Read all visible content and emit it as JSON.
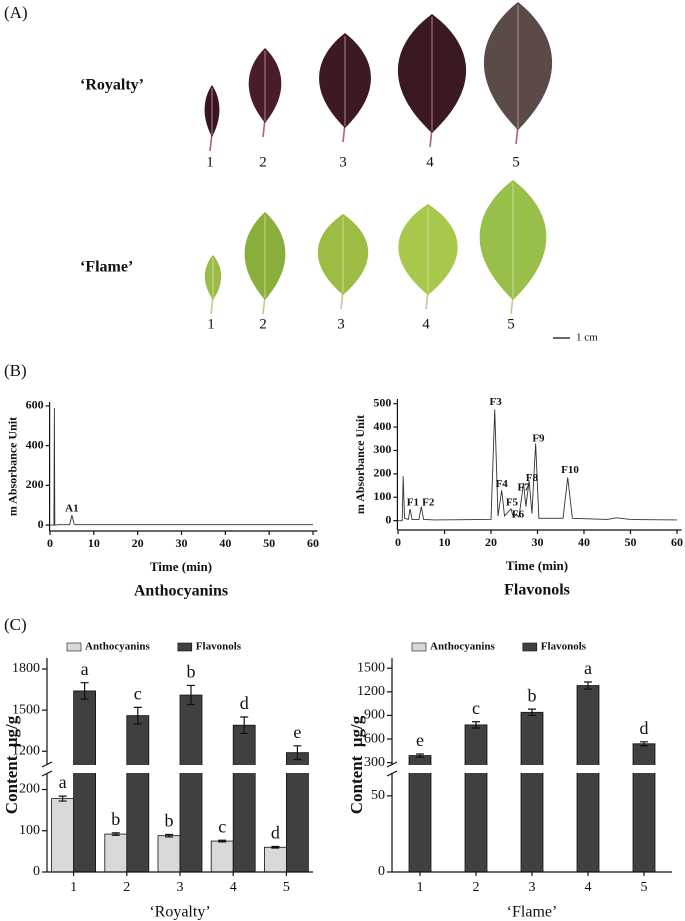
{
  "figure": {
    "panel_labels": [
      "(A)",
      "(B)",
      "(C)"
    ],
    "leaf_rows": [
      {
        "label": "‘Royalty’",
        "numbers": [
          "1",
          "2",
          "3",
          "4",
          "5"
        ]
      },
      {
        "label": "‘Flame’",
        "numbers": [
          "1",
          "2",
          "3",
          "4",
          "5"
        ]
      }
    ],
    "scale_bar": "1 cm"
  },
  "chart_data": [
    {
      "type": "line",
      "title": "Anthocyanins",
      "xlabel": "Time (min)",
      "ylabel": "m Absorbance Unit",
      "color": "#333333",
      "x": [
        0,
        0.9,
        1.0,
        1.1,
        1.3,
        2,
        4.5,
        5,
        5.5,
        6,
        10,
        60
      ],
      "values": [
        0,
        0,
        590,
        0,
        0,
        2,
        2,
        50,
        5,
        2,
        2,
        2
      ],
      "xlim": [
        -1,
        61
      ],
      "xticks": [
        0,
        10,
        20,
        30,
        40,
        50,
        60
      ],
      "ylim": [
        -30,
        620
      ],
      "yticks": [
        0,
        200,
        400,
        600
      ],
      "annotations": [
        {
          "text": "A1",
          "x": 5,
          "y": 80
        }
      ]
    },
    {
      "type": "line",
      "title": "Flavonols",
      "xlabel": "Time (min)",
      "ylabel": "m Absorbance Unit",
      "color": "#333333",
      "x": [
        0,
        0.9,
        1.1,
        1.4,
        2.2,
        2.6,
        3,
        4.5,
        5,
        5.5,
        8,
        20,
        20.8,
        21.5,
        22.3,
        22.9,
        24.3,
        24.8,
        25.5,
        26,
        27,
        27.5,
        28.2,
        28.8,
        29.6,
        30.3,
        35.5,
        36.5,
        37.5,
        45,
        47,
        50,
        60
      ],
      "values": [
        0,
        0,
        190,
        10,
        5,
        50,
        5,
        5,
        60,
        5,
        3,
        5,
        475,
        20,
        130,
        20,
        50,
        15,
        25,
        15,
        160,
        60,
        170,
        30,
        330,
        10,
        10,
        185,
        10,
        5,
        12,
        5,
        3
      ],
      "xlim": [
        -1,
        61
      ],
      "xticks": [
        0,
        10,
        20,
        30,
        40,
        50,
        60
      ],
      "ylim": [
        -40,
        520
      ],
      "yticks": [
        0,
        100,
        200,
        300,
        400,
        500
      ],
      "annotations": [
        {
          "text": "F1",
          "x": 3.2,
          "y": 75
        },
        {
          "text": "F2",
          "x": 6.5,
          "y": 75
        },
        {
          "text": "F3",
          "x": 21,
          "y": 505
        },
        {
          "text": "F4",
          "x": 22.3,
          "y": 155
        },
        {
          "text": "F5",
          "x": 24.5,
          "y": 75
        },
        {
          "text": "F6",
          "x": 25.8,
          "y": 25
        },
        {
          "text": "F7",
          "x": 27,
          "y": 140
        },
        {
          "text": "F8",
          "x": 28.8,
          "y": 180
        },
        {
          "text": "F9",
          "x": 30.2,
          "y": 350
        },
        {
          "text": "F10",
          "x": 37,
          "y": 215
        }
      ]
    },
    {
      "type": "bar",
      "xlabel": "‘Royalty’",
      "ylabel": "Content  μg/g",
      "categories": [
        "1",
        "2",
        "3",
        "4",
        "5"
      ],
      "series": [
        {
          "name": "Anthocyanins",
          "color": "#d9d9d9",
          "values": [
            178,
            92,
            88,
            75,
            60
          ],
          "errors": [
            6,
            3,
            3,
            2,
            2
          ],
          "letters": [
            "a",
            "b",
            "b",
            "c",
            "d"
          ]
        },
        {
          "name": "Flavonols",
          "color": "#404040",
          "values": [
            1640,
            1460,
            1610,
            1390,
            1190
          ],
          "errors": [
            60,
            60,
            70,
            60,
            50
          ],
          "letters": [
            "a",
            "c",
            "b",
            "d",
            "e"
          ]
        }
      ],
      "ylim_lower": [
        0,
        240
      ],
      "yticks_lower": [
        0,
        100,
        200
      ],
      "ylim_upper": [
        1100,
        1880
      ],
      "yticks_upper": [
        1200,
        1500,
        1800
      ],
      "legend": "top"
    },
    {
      "type": "bar",
      "xlabel": "‘Flame’",
      "ylabel": "Content  μg/g",
      "categories": [
        "1",
        "2",
        "3",
        "4",
        "5"
      ],
      "series": [
        {
          "name": "Anthocyanins",
          "color": "#d9d9d9",
          "values": [
            null,
            null,
            null,
            null,
            null
          ]
        },
        {
          "name": "Flavonols",
          "color": "#404040",
          "values": [
            390,
            780,
            940,
            1280,
            540
          ],
          "errors": [
            20,
            40,
            40,
            45,
            25
          ],
          "letters": [
            "e",
            "c",
            "b",
            "a",
            "d"
          ]
        }
      ],
      "ylim_lower": [
        0,
        65
      ],
      "yticks_lower": [
        0,
        50
      ],
      "ylim_upper": [
        270,
        1630
      ],
      "yticks_upper": [
        300,
        600,
        900,
        1200,
        1500
      ],
      "legend": "top"
    }
  ]
}
